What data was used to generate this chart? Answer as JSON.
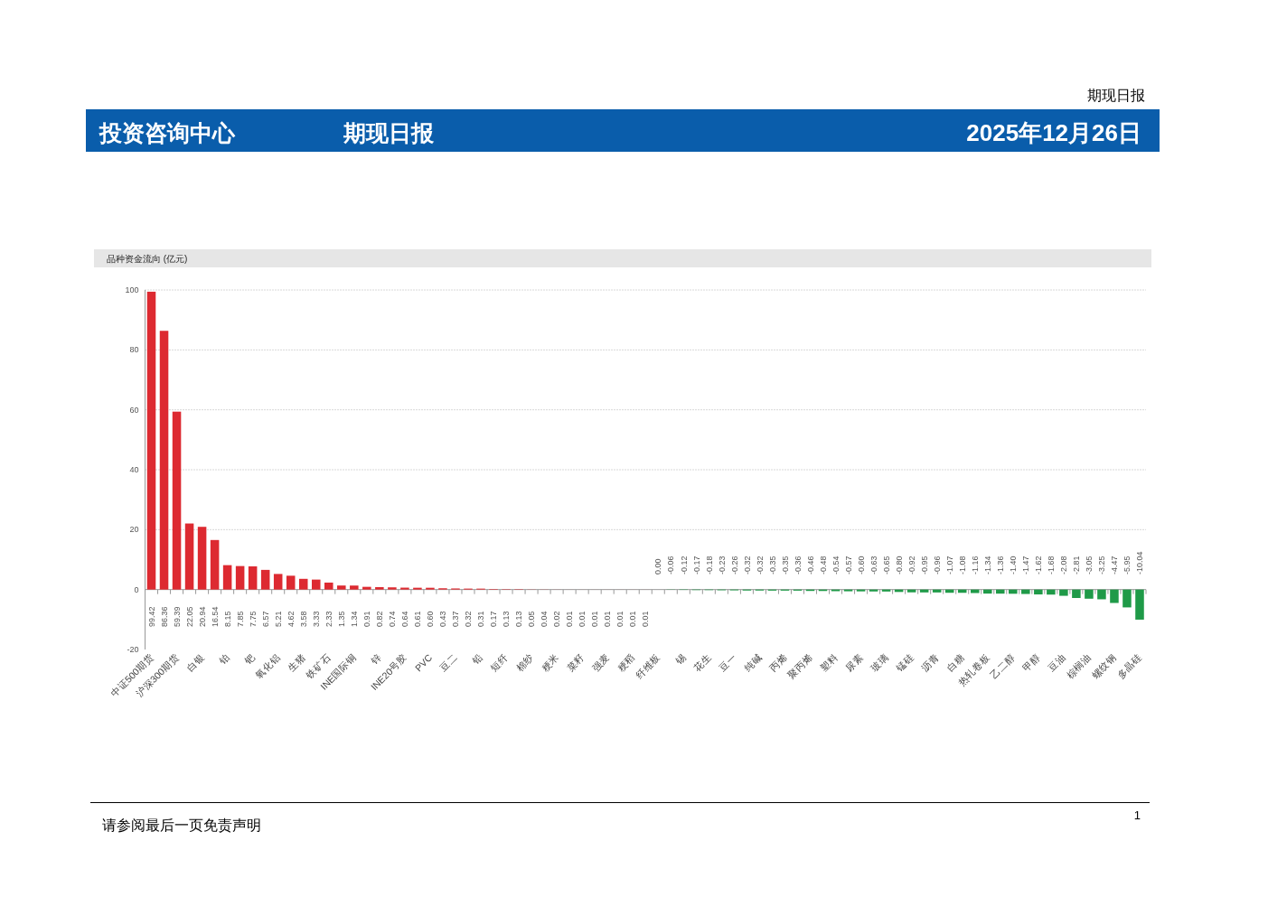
{
  "chart_data": {
    "type": "bar",
    "title": "品种资金流向 (亿元)",
    "annotations": [
      "期现日报",
      "投资咨询中心",
      "期现日报",
      "2025年12月26日",
      "请参阅最后一页免责声明",
      "1"
    ],
    "categories": [
      "中证500期货",
      null,
      "沪深300期货",
      null,
      "白银",
      null,
      "铂",
      null,
      "钯",
      null,
      "氧化铝",
      null,
      "生猪",
      null,
      "铁矿石",
      null,
      "INE国际铜",
      null,
      "锌",
      null,
      "INE20号胶",
      null,
      "PVC",
      null,
      "豆二",
      null,
      "铅",
      null,
      "短纤",
      null,
      "棉纱",
      null,
      "粳米",
      null,
      "菜籽",
      null,
      "强麦",
      null,
      "粳稻",
      null,
      "纤维板",
      null,
      "锡",
      null,
      "花生",
      null,
      "豆一",
      null,
      "纯碱",
      null,
      "丙烯",
      null,
      "聚丙烯",
      null,
      "塑料",
      null,
      "尿素",
      null,
      "玻璃",
      null,
      "锰硅",
      null,
      "沥青",
      null,
      "白糖",
      null,
      "热轧卷板",
      null,
      "乙二醇",
      null,
      "甲醇",
      null,
      "豆油",
      null,
      "棕榈油",
      null,
      "螺纹钢",
      null,
      "多晶硅"
    ],
    "values": [
      99.42,
      86.36,
      59.39,
      22.05,
      20.94,
      16.54,
      8.15,
      7.85,
      7.75,
      6.57,
      5.21,
      4.62,
      3.58,
      3.33,
      2.33,
      1.35,
      1.34,
      0.91,
      0.82,
      0.74,
      0.64,
      0.61,
      0.6,
      0.43,
      0.37,
      0.32,
      0.31,
      0.17,
      0.13,
      0.13,
      0.05,
      0.04,
      0.02,
      0.01,
      0.01,
      0.01,
      0.01,
      0.01,
      0.01,
      0.01,
      0,
      -0.06,
      -0.12,
      -0.17,
      -0.18,
      -0.23,
      -0.26,
      -0.32,
      -0.32,
      -0.35,
      -0.35,
      -0.36,
      -0.46,
      -0.48,
      -0.54,
      -0.57,
      -0.6,
      -0.63,
      -0.65,
      -0.8,
      -0.92,
      -0.95,
      -0.96,
      -1.07,
      -1.08,
      -1.16,
      -1.34,
      -1.36,
      -1.4,
      -1.47,
      -1.62,
      -1.68,
      -2.08,
      -2.81,
      -3.05,
      -3.25,
      -4.47,
      -5.95,
      -10.04
    ],
    "value_labels": [
      "99.42",
      "86.36",
      "59.39",
      "22.05",
      "20.94",
      "16.54",
      "8.15",
      "7.85",
      "7.75",
      "6.57",
      "5.21",
      "4.62",
      "3.58",
      "3.33",
      "2.33",
      "1.35",
      "1.34",
      "0.91",
      "0.82",
      "0.74",
      "0.64",
      "0.61",
      "0.60",
      "0.43",
      "0.37",
      "0.32",
      "0.31",
      "0.17",
      "0.13",
      "0.13",
      "0.05",
      "0.04",
      "0.02",
      "0.01",
      "0.01",
      "0.01",
      "0.01",
      "0.01",
      "0.01",
      "0.01",
      "0.00",
      "-0.06",
      "-0.12",
      "-0.17",
      "-0.18",
      "-0.23",
      "-0.26",
      "-0.32",
      "-0.32",
      "-0.35",
      "-0.35",
      "-0.36",
      "-0.46",
      "-0.48",
      "-0.54",
      "-0.57",
      "-0.60",
      "-0.63",
      "-0.65",
      "-0.80",
      "-0.92",
      "-0.95",
      "-0.96",
      "-1.07",
      "-1.08",
      "-1.16",
      "-1.34",
      "-1.36",
      "-1.40",
      "-1.47",
      "-1.62",
      "-1.68",
      "-2.08",
      "-2.81",
      "-3.05",
      "-3.25",
      "-4.47",
      "-5.95",
      "-10.04"
    ],
    "colors": [
      "#dd2a31",
      "#dd2a31",
      "#dd2a31",
      "#dd2a31",
      "#dd2a31",
      "#dd2a31",
      "#dd2a31",
      "#dd2a31",
      "#dd2a31",
      "#dd2a31",
      "#dd2a31",
      "#dd2a31",
      "#dd2a31",
      "#dd2a31",
      "#dd2a31",
      "#dd2a31",
      "#dd2a31",
      "#dd2a31",
      "#dd2a31",
      "#dd2a31",
      "#dd2a31",
      "#dd2a31",
      "#dd2a31",
      "#dd2a31",
      "#dd2a31",
      "#dd2a31",
      "#dd2a31",
      "#dd2a31",
      "#dd2a31",
      "#dd2a31",
      "#dd2a31",
      "#dd2a31",
      "#dd2a31",
      "#dd2a31",
      "#dd2a31",
      "#dd2a31",
      "#dd2a31",
      "#dd2a31",
      "#dd2a31",
      "#dd2a31",
      "#1f9a48",
      "#1f9a48",
      "#1f9a48",
      "#1f9a48",
      "#1f9a48",
      "#1f9a48",
      "#1f9a48",
      "#1f9a48",
      "#1f9a48",
      "#1f9a48",
      "#1f9a48",
      "#1f9a48",
      "#1f9a48",
      "#1f9a48",
      "#1f9a48",
      "#1f9a48",
      "#1f9a48",
      "#1f9a48",
      "#1f9a48",
      "#1f9a48",
      "#1f9a48",
      "#1f9a48",
      "#1f9a48",
      "#1f9a48",
      "#1f9a48",
      "#1f9a48",
      "#1f9a48",
      "#1f9a48",
      "#1f9a48",
      "#1f9a48",
      "#1f9a48",
      "#1f9a48",
      "#1f9a48",
      "#1f9a48",
      "#1f9a48",
      "#1f9a48",
      "#1f9a48",
      "#1f9a48",
      "#1f9a48"
    ],
    "ylim": [
      -20,
      100
    ],
    "yticks": [
      -20,
      0,
      20,
      40,
      60,
      80,
      100
    ],
    "grid": "y"
  }
}
